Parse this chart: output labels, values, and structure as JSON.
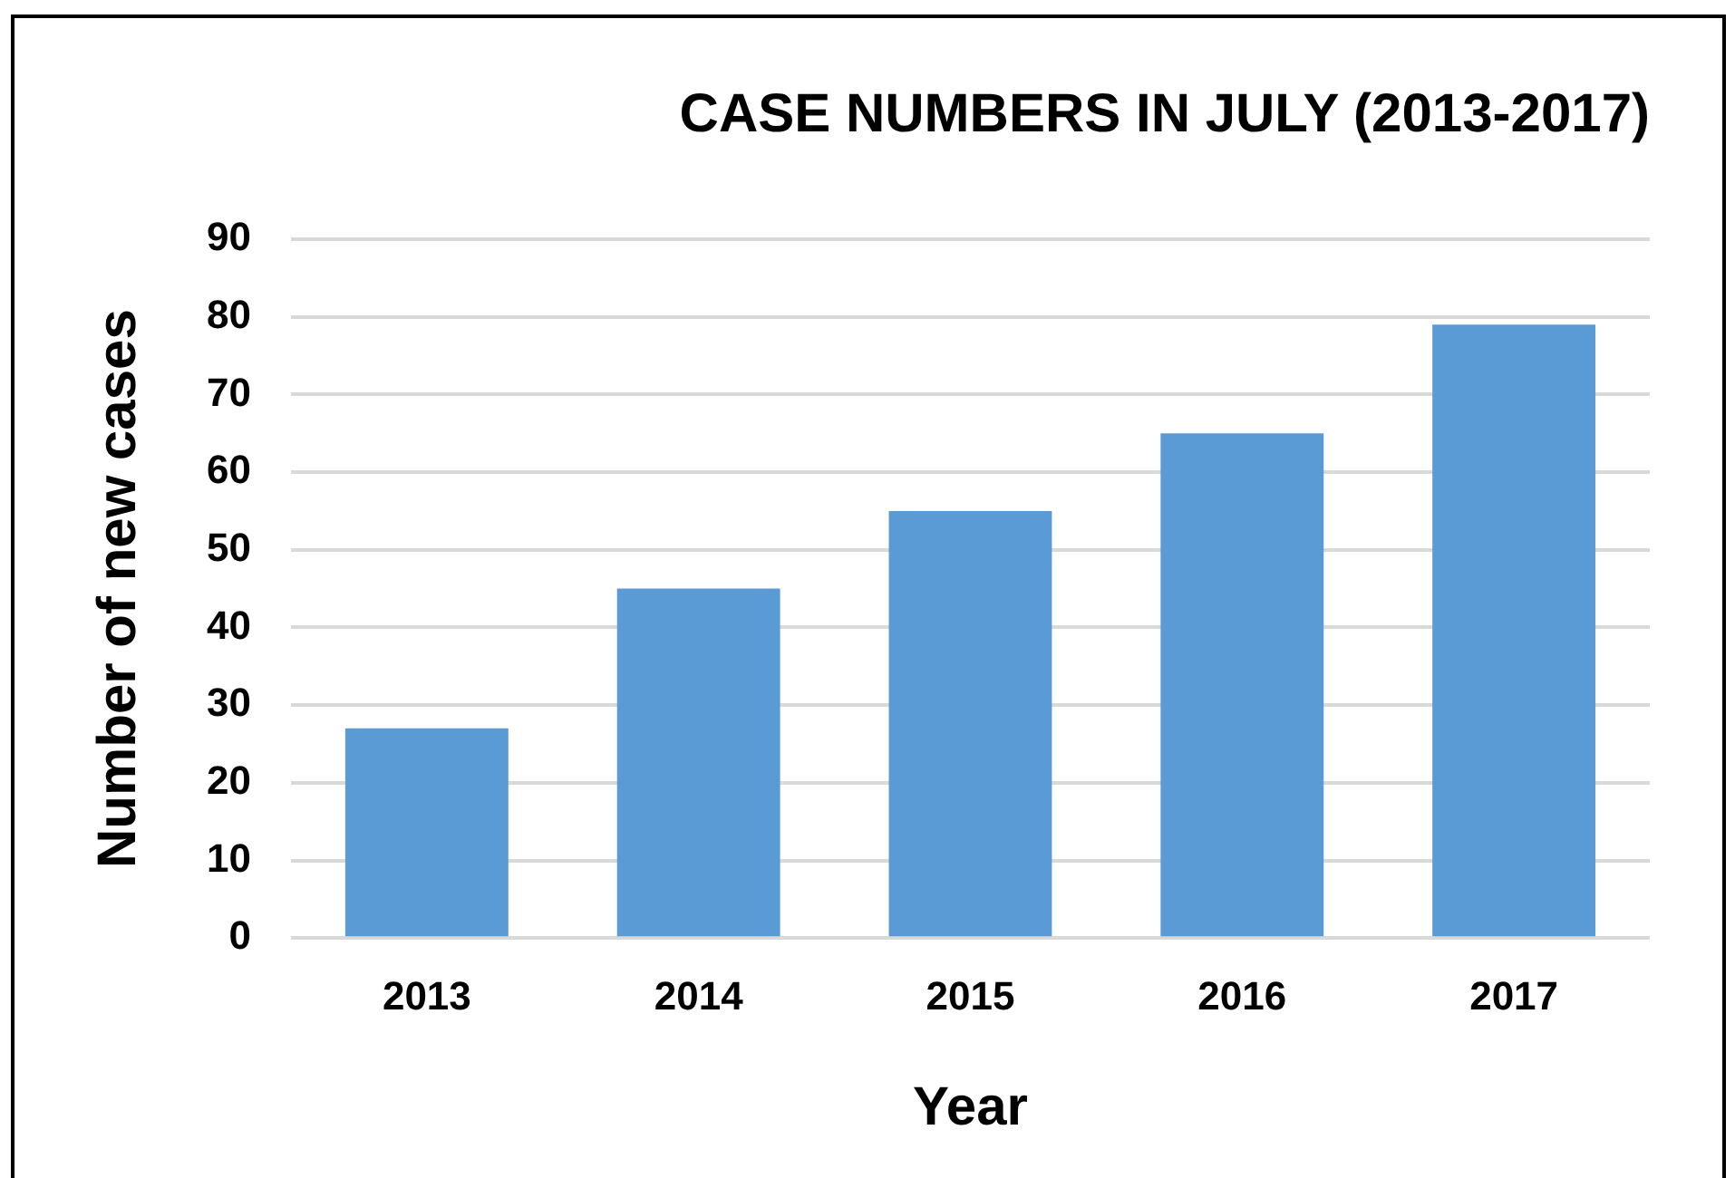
{
  "chart_data": {
    "type": "bar",
    "title": "CASE NUMBERS IN JULY (2013-2017)",
    "xlabel": "Year",
    "ylabel": "Number of new cases",
    "categories": [
      "2013",
      "2014",
      "2015",
      "2016",
      "2017"
    ],
    "values": [
      27,
      45,
      55,
      65,
      79
    ],
    "color": "#5b9bd5",
    "ylim": [
      0,
      90
    ],
    "yticks": [
      0,
      10,
      20,
      30,
      40,
      50,
      60,
      70,
      80,
      90
    ],
    "grid": "y",
    "legend": false
  }
}
